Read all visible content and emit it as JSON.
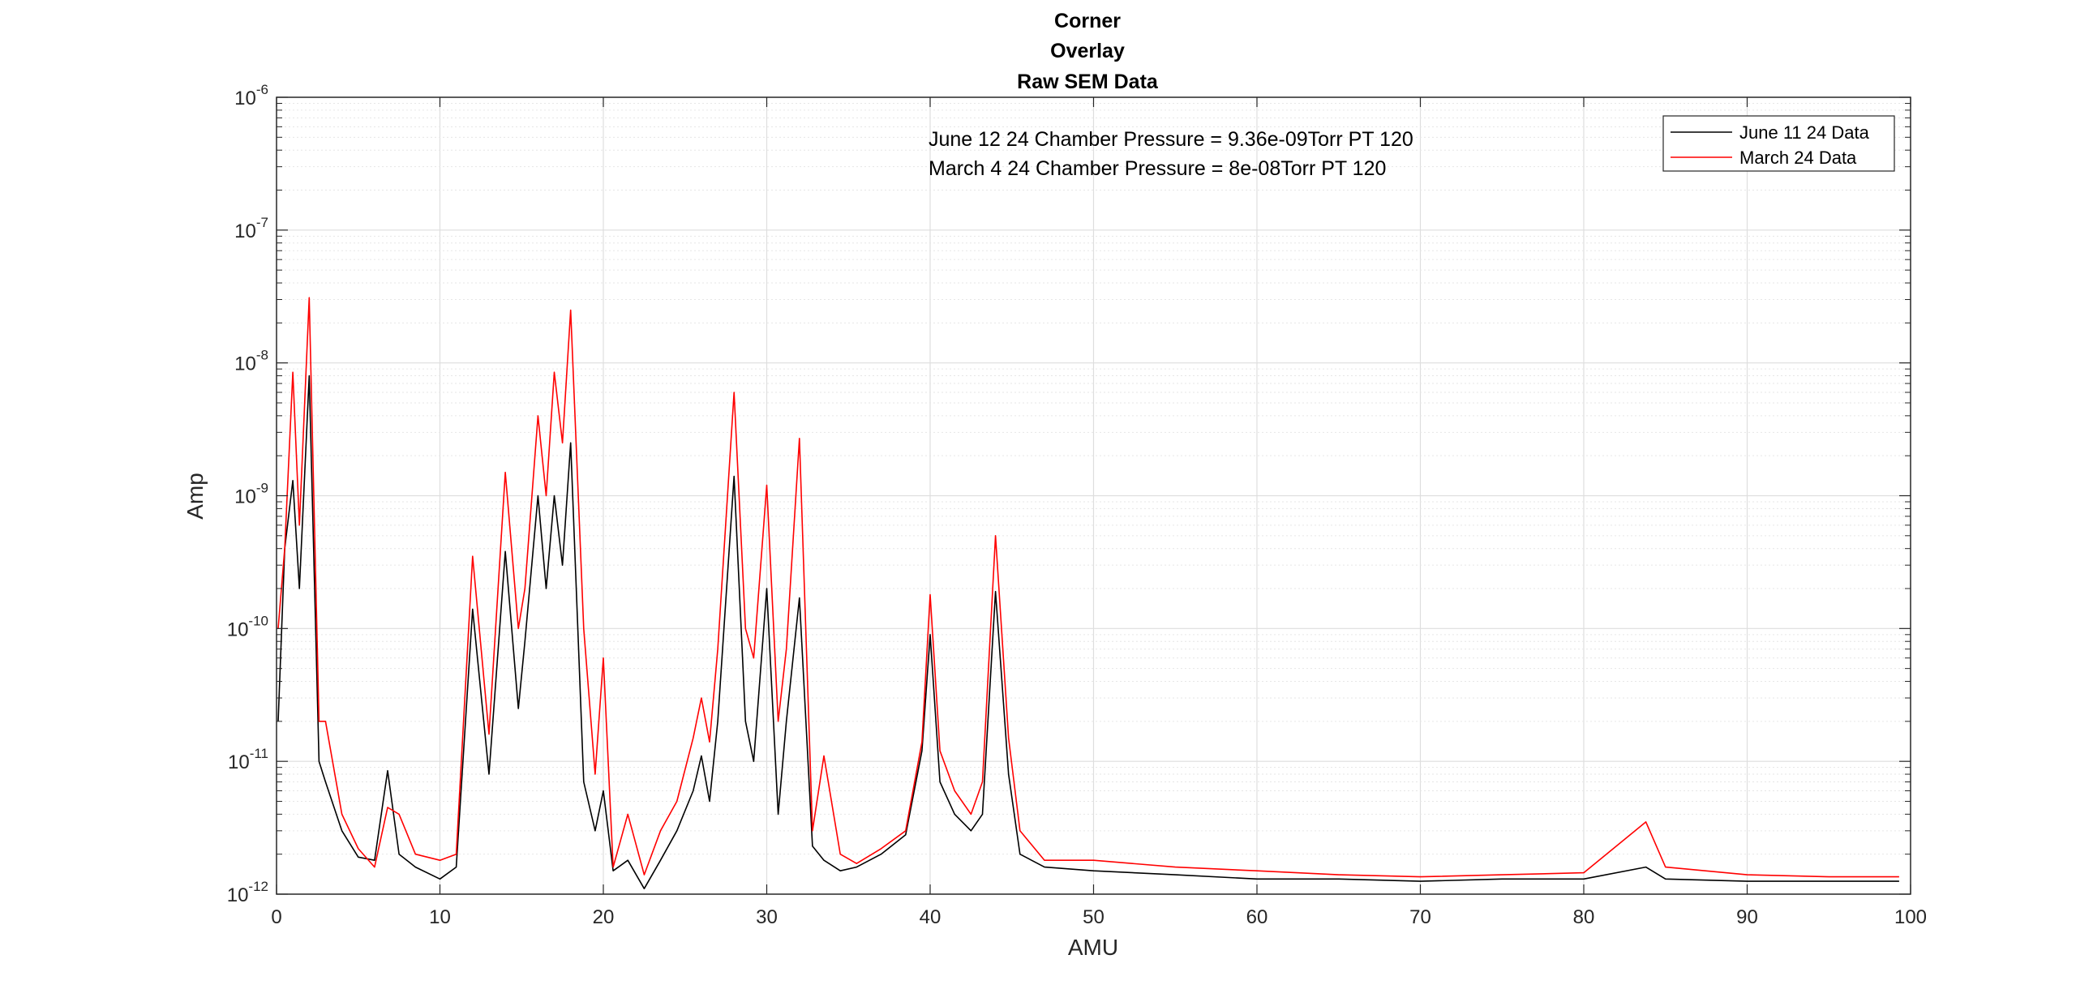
{
  "chart_data": {
    "type": "line",
    "title": [
      "Corner",
      "Overlay",
      "Raw SEM Data"
    ],
    "xlabel": "AMU",
    "ylabel": "Amp",
    "xlim": [
      0,
      100
    ],
    "ylim": [
      1e-12,
      1e-06
    ],
    "yscale": "log",
    "grid": true,
    "minor_grid": true,
    "legend_position": "top-right",
    "x_ticks": [
      0,
      10,
      20,
      30,
      40,
      50,
      60,
      70,
      80,
      90,
      100
    ],
    "x_tick_labels": [
      "0",
      "10",
      "20",
      "30",
      "40",
      "50",
      "60",
      "70",
      "80",
      "90",
      "100"
    ],
    "y_ticks": [
      1e-12,
      1e-11,
      1e-10,
      1e-09,
      1e-08,
      1e-07,
      1e-06
    ],
    "y_tick_labels": [
      {
        "base": "10",
        "exp": "-12"
      },
      {
        "base": "10",
        "exp": "-11"
      },
      {
        "base": "10",
        "exp": "-10"
      },
      {
        "base": "10",
        "exp": "-9"
      },
      {
        "base": "10",
        "exp": "-8"
      },
      {
        "base": "10",
        "exp": "-7"
      },
      {
        "base": "10",
        "exp": "-6"
      }
    ],
    "annotations": [
      "June 12 24 Chamber Pressure = 9.36e-09Torr PT 120",
      "March 4 24 Chamber Pressure = 8e-08Torr PT 120"
    ],
    "series": [
      {
        "name": "June 11 24 Data",
        "color": "#000000",
        "x": [
          0.1,
          0.5,
          1.0,
          1.4,
          2.0,
          2.6,
          3.0,
          4.0,
          5.0,
          6.0,
          6.8,
          7.5,
          8.5,
          10.0,
          11.0,
          12.0,
          13.0,
          14.0,
          14.8,
          15.2,
          16.0,
          16.5,
          17.0,
          17.5,
          18.0,
          18.8,
          19.5,
          20.0,
          20.6,
          21.5,
          22.5,
          23.5,
          24.5,
          25.5,
          26.0,
          26.5,
          27.0,
          28.0,
          28.7,
          29.2,
          30.0,
          30.7,
          31.2,
          32.0,
          32.8,
          33.5,
          34.5,
          35.5,
          37.0,
          38.5,
          39.5,
          40.0,
          40.6,
          41.5,
          42.5,
          43.2,
          44.0,
          44.8,
          45.5,
          47.0,
          50.0,
          55.0,
          60.0,
          65.0,
          70.0,
          75.0,
          80.0,
          83.8,
          85.0,
          90.0,
          95.0,
          99.3
        ],
        "y": [
          2e-11,
          4e-10,
          1.3e-09,
          2e-10,
          8e-09,
          1e-11,
          7e-12,
          3e-12,
          1.9e-12,
          1.8e-12,
          8.5e-12,
          2e-12,
          1.6e-12,
          1.3e-12,
          1.6e-12,
          1.4e-10,
          8e-12,
          3.8e-10,
          2.5e-11,
          8e-11,
          1e-09,
          2e-10,
          1e-09,
          3e-10,
          2.5e-09,
          7e-12,
          3e-12,
          6e-12,
          1.5e-12,
          1.8e-12,
          1.1e-12,
          1.8e-12,
          3e-12,
          6e-12,
          1.1e-11,
          5e-12,
          2e-11,
          1.4e-09,
          2e-11,
          1e-11,
          2e-10,
          4e-12,
          2e-11,
          1.7e-10,
          2.3e-12,
          1.8e-12,
          1.5e-12,
          1.6e-12,
          2e-12,
          2.8e-12,
          1.2e-11,
          9e-11,
          7e-12,
          4e-12,
          3e-12,
          4e-12,
          1.9e-10,
          8e-12,
          2e-12,
          1.6e-12,
          1.5e-12,
          1.4e-12,
          1.3e-12,
          1.3e-12,
          1.25e-12,
          1.3e-12,
          1.3e-12,
          1.6e-12,
          1.3e-12,
          1.25e-12,
          1.25e-12,
          1.25e-12
        ]
      },
      {
        "name": "March 24 Data",
        "color": "#ff0000",
        "x": [
          0.1,
          0.5,
          1.0,
          1.4,
          2.0,
          2.6,
          3.0,
          4.0,
          5.0,
          6.0,
          6.8,
          7.5,
          8.5,
          10.0,
          11.0,
          12.0,
          13.0,
          14.0,
          14.8,
          15.2,
          16.0,
          16.5,
          17.0,
          17.5,
          18.0,
          18.8,
          19.5,
          20.0,
          20.6,
          21.5,
          22.5,
          23.5,
          24.5,
          25.5,
          26.0,
          26.5,
          27.0,
          28.0,
          28.7,
          29.2,
          30.0,
          30.7,
          31.2,
          32.0,
          32.8,
          33.5,
          34.5,
          35.5,
          37.0,
          38.5,
          39.5,
          40.0,
          40.6,
          41.5,
          42.5,
          43.2,
          44.0,
          44.8,
          45.5,
          47.0,
          50.0,
          55.0,
          60.0,
          65.0,
          70.0,
          75.0,
          80.0,
          83.8,
          85.0,
          90.0,
          95.0,
          99.3
        ],
        "y": [
          1e-10,
          4e-10,
          8.5e-09,
          6e-10,
          3.1e-08,
          2e-11,
          2e-11,
          4e-12,
          2.2e-12,
          1.6e-12,
          4.5e-12,
          4e-12,
          2e-12,
          1.8e-12,
          2e-12,
          3.5e-10,
          1.6e-11,
          1.5e-09,
          1e-10,
          2e-10,
          4e-09,
          1e-09,
          8.5e-09,
          2.5e-09,
          2.5e-08,
          1e-10,
          8e-12,
          6e-11,
          1.6e-12,
          4e-12,
          1.4e-12,
          3e-12,
          5e-12,
          1.5e-11,
          3e-11,
          1.4e-11,
          7e-11,
          6e-09,
          1e-10,
          6e-11,
          1.2e-09,
          2e-11,
          7e-11,
          2.7e-09,
          3e-12,
          1.1e-11,
          2e-12,
          1.7e-12,
          2.2e-12,
          3e-12,
          1.4e-11,
          1.8e-10,
          1.2e-11,
          6e-12,
          4e-12,
          7e-12,
          5e-10,
          1.5e-11,
          3e-12,
          1.8e-12,
          1.8e-12,
          1.6e-12,
          1.5e-12,
          1.4e-12,
          1.35e-12,
          1.4e-12,
          1.45e-12,
          3.5e-12,
          1.6e-12,
          1.4e-12,
          1.35e-12,
          1.35e-12
        ]
      }
    ]
  }
}
